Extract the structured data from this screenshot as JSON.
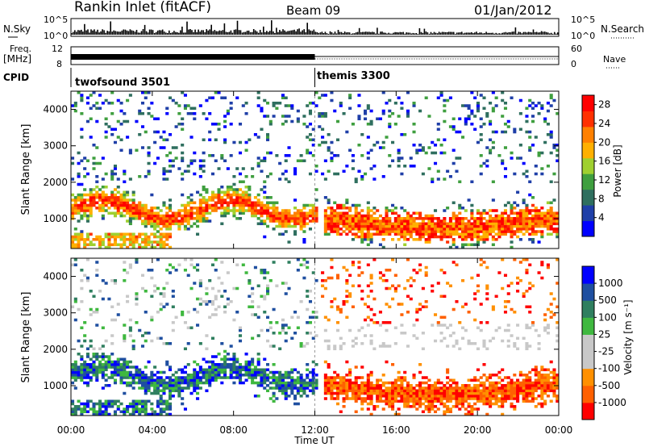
{
  "header": {
    "station": "Rankin Inlet (fitACF)",
    "beam": "Beam 09",
    "date": "01/Jan/2012"
  },
  "side_labels": {
    "nsky": "N.Sky",
    "nsearch": "N.Search",
    "freq": "Freq.",
    "freq_unit": "[MHz]",
    "nave": "Nave",
    "cpid": "CPID"
  },
  "ticks": {
    "nsky_left": [
      "10^5",
      "10^0"
    ],
    "nsky_right": [
      "10^5",
      "10^0"
    ],
    "freq_left": [
      "12",
      "8"
    ],
    "nave_right": [
      "60",
      "0"
    ]
  },
  "cpid": [
    {
      "name": "twofsound 3501",
      "start_hour": 0,
      "end_hour": 12
    },
    {
      "name": "themis 3300",
      "start_hour": 12,
      "end_hour": 24
    }
  ],
  "colors": {
    "power": [
      "#0000ff",
      "#1f3fa8",
      "#2f6f5f",
      "#3f9f3f",
      "#9fd030",
      "#ffb000",
      "#ff8000",
      "#ff3000",
      "#ff0000"
    ],
    "velocity": [
      "#ff0000",
      "#ff6000",
      "#ff9000",
      "#c8c8c8",
      "#c8c8c8",
      "#3fb83f",
      "#2f7f5f",
      "#1f4fa0",
      "#0000ff"
    ]
  },
  "chart_data": [
    {
      "type": "heatmap",
      "title": "",
      "xlabel": "Time UT",
      "ylabel": "Slant Range [km]",
      "xticks": [
        "00:00",
        "04:00",
        "08:00",
        "12:00",
        "16:00",
        "20:00",
        "00:00"
      ],
      "xlim": [
        0,
        24
      ],
      "yticks": [
        1000,
        2000,
        3000,
        4000
      ],
      "ylim": [
        180,
        4500
      ],
      "colorbar_label": "Power [dB]",
      "colorbar_ticks": [
        4,
        8,
        12,
        16,
        20,
        24,
        28
      ],
      "clim": [
        0,
        30
      ],
      "features": [
        {
          "hours": [
            0,
            12
          ],
          "range_km": [
            800,
            1800
          ],
          "level": "mixed 8-28 dB"
        },
        {
          "hours": [
            12.5,
            24
          ],
          "range_km": [
            500,
            1500
          ],
          "level": "strong 20-30 dB"
        },
        {
          "hours": [
            0,
            24
          ],
          "range_km": [
            2000,
            4500
          ],
          "level": "sparse 4-16 dB"
        }
      ]
    },
    {
      "type": "heatmap",
      "title": "",
      "xlabel": "Time UT",
      "ylabel": "Slant Range [km]",
      "xticks": [
        "00:00",
        "04:00",
        "08:00",
        "12:00",
        "16:00",
        "20:00",
        "00:00"
      ],
      "xlim": [
        0,
        24
      ],
      "yticks": [
        1000,
        2000,
        3000,
        4000
      ],
      "ylim": [
        180,
        4500
      ],
      "colorbar_label": "Velocity [m s⁻¹]",
      "colorbar_ticks": [
        "1000",
        "500",
        "100",
        "25",
        "-25",
        "-100",
        "-500",
        "-1000"
      ],
      "features": [
        {
          "hours": [
            0,
            12
          ],
          "range_km": [
            800,
            1800
          ],
          "level": "positive 100-1000 m/s"
        },
        {
          "hours": [
            12.5,
            24
          ],
          "range_km": [
            500,
            2000
          ],
          "level": "negative -100 to -1000 m/s"
        },
        {
          "hours": [
            10,
            24
          ],
          "range_km": [
            2000,
            2600
          ],
          "level": "near zero"
        }
      ]
    }
  ]
}
